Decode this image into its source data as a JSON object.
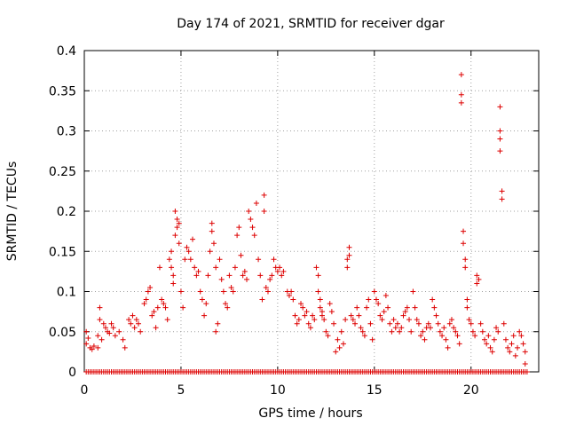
{
  "chart_data": {
    "type": "scatter",
    "title": "Day 174 of 2021, SRMTID for receiver dgar",
    "xlabel": "GPS time / hours",
    "ylabel": "SRMTID / TECUs",
    "xlim": [
      0,
      23.5
    ],
    "ylim": [
      0,
      0.4
    ],
    "grid": true,
    "marker": "+",
    "color": "#dd0000",
    "xticks": [
      0,
      5,
      10,
      15,
      20
    ],
    "xtick_labels": [
      "0",
      "5",
      "10",
      "15",
      "20"
    ],
    "yticks": [
      0,
      0.05,
      0.1,
      0.15,
      0.2,
      0.25,
      0.3,
      0.35,
      0.4
    ],
    "ytick_labels": [
      "0",
      "0.05",
      "0.1",
      "0.15",
      "0.2",
      "0.25",
      "0.3",
      "0.35",
      "0.4"
    ],
    "series": [
      {
        "name": "SRMTID",
        "points": [
          [
            0.1,
            0.035
          ],
          [
            0.1,
            0.05
          ],
          [
            0.2,
            0.042
          ],
          [
            0.3,
            0.03
          ],
          [
            0.4,
            0.028
          ],
          [
            0.5,
            0.032
          ],
          [
            0.7,
            0.045
          ],
          [
            0.7,
            0.03
          ],
          [
            0.8,
            0.065
          ],
          [
            0.8,
            0.08
          ],
          [
            0.9,
            0.04
          ],
          [
            1.0,
            0.06
          ],
          [
            1.1,
            0.055
          ],
          [
            1.2,
            0.05
          ],
          [
            1.3,
            0.048
          ],
          [
            1.4,
            0.06
          ],
          [
            1.5,
            0.055
          ],
          [
            1.6,
            0.045
          ],
          [
            1.8,
            0.05
          ],
          [
            2.0,
            0.04
          ],
          [
            2.1,
            0.03
          ],
          [
            2.3,
            0.065
          ],
          [
            2.4,
            0.06
          ],
          [
            2.5,
            0.07
          ],
          [
            2.6,
            0.055
          ],
          [
            2.7,
            0.065
          ],
          [
            2.8,
            0.06
          ],
          [
            2.9,
            0.05
          ],
          [
            3.1,
            0.085
          ],
          [
            3.2,
            0.09
          ],
          [
            3.3,
            0.1
          ],
          [
            3.4,
            0.105
          ],
          [
            3.5,
            0.07
          ],
          [
            3.6,
            0.075
          ],
          [
            3.7,
            0.055
          ],
          [
            3.8,
            0.08
          ],
          [
            3.9,
            0.13
          ],
          [
            4.0,
            0.09
          ],
          [
            4.1,
            0.085
          ],
          [
            4.2,
            0.08
          ],
          [
            4.3,
            0.065
          ],
          [
            4.4,
            0.14
          ],
          [
            4.5,
            0.13
          ],
          [
            4.5,
            0.15
          ],
          [
            4.6,
            0.11
          ],
          [
            4.6,
            0.12
          ],
          [
            4.7,
            0.17
          ],
          [
            4.7,
            0.2
          ],
          [
            4.8,
            0.18
          ],
          [
            4.8,
            0.19
          ],
          [
            4.9,
            0.16
          ],
          [
            4.9,
            0.185
          ],
          [
            5.0,
            0.1
          ],
          [
            5.1,
            0.08
          ],
          [
            5.2,
            0.14
          ],
          [
            5.3,
            0.155
          ],
          [
            5.4,
            0.15
          ],
          [
            5.5,
            0.14
          ],
          [
            5.6,
            0.165
          ],
          [
            5.7,
            0.13
          ],
          [
            5.8,
            0.12
          ],
          [
            5.9,
            0.125
          ],
          [
            6.0,
            0.1
          ],
          [
            6.1,
            0.09
          ],
          [
            6.2,
            0.07
          ],
          [
            6.3,
            0.085
          ],
          [
            6.4,
            0.12
          ],
          [
            6.5,
            0.15
          ],
          [
            6.6,
            0.175
          ],
          [
            6.6,
            0.185
          ],
          [
            6.7,
            0.16
          ],
          [
            6.8,
            0.13
          ],
          [
            6.8,
            0.05
          ],
          [
            6.9,
            0.06
          ],
          [
            7.0,
            0.14
          ],
          [
            7.1,
            0.115
          ],
          [
            7.2,
            0.1
          ],
          [
            7.3,
            0.085
          ],
          [
            7.4,
            0.08
          ],
          [
            7.5,
            0.12
          ],
          [
            7.6,
            0.105
          ],
          [
            7.7,
            0.1
          ],
          [
            7.8,
            0.13
          ],
          [
            7.9,
            0.17
          ],
          [
            8.0,
            0.18
          ],
          [
            8.1,
            0.145
          ],
          [
            8.2,
            0.12
          ],
          [
            8.3,
            0.125
          ],
          [
            8.4,
            0.115
          ],
          [
            8.5,
            0.2
          ],
          [
            8.6,
            0.19
          ],
          [
            8.7,
            0.18
          ],
          [
            8.8,
            0.17
          ],
          [
            8.9,
            0.21
          ],
          [
            9.0,
            0.14
          ],
          [
            9.1,
            0.12
          ],
          [
            9.2,
            0.09
          ],
          [
            9.3,
            0.22
          ],
          [
            9.3,
            0.2
          ],
          [
            9.4,
            0.105
          ],
          [
            9.5,
            0.1
          ],
          [
            9.6,
            0.115
          ],
          [
            9.7,
            0.12
          ],
          [
            9.8,
            0.14
          ],
          [
            9.9,
            0.13
          ],
          [
            10.0,
            0.125
          ],
          [
            10.1,
            0.13
          ],
          [
            10.2,
            0.12
          ],
          [
            10.3,
            0.125
          ],
          [
            10.5,
            0.1
          ],
          [
            10.6,
            0.095
          ],
          [
            10.7,
            0.1
          ],
          [
            10.8,
            0.09
          ],
          [
            10.9,
            0.07
          ],
          [
            11.0,
            0.06
          ],
          [
            11.1,
            0.065
          ],
          [
            11.2,
            0.085
          ],
          [
            11.3,
            0.08
          ],
          [
            11.4,
            0.07
          ],
          [
            11.5,
            0.075
          ],
          [
            11.6,
            0.06
          ],
          [
            11.7,
            0.055
          ],
          [
            11.8,
            0.07
          ],
          [
            11.9,
            0.065
          ],
          [
            12.0,
            0.13
          ],
          [
            12.1,
            0.12
          ],
          [
            12.1,
            0.1
          ],
          [
            12.2,
            0.09
          ],
          [
            12.2,
            0.08
          ],
          [
            12.3,
            0.075
          ],
          [
            12.3,
            0.07
          ],
          [
            12.4,
            0.065
          ],
          [
            12.5,
            0.05
          ],
          [
            12.6,
            0.045
          ],
          [
            12.7,
            0.085
          ],
          [
            12.8,
            0.075
          ],
          [
            12.9,
            0.06
          ],
          [
            13.0,
            0.025
          ],
          [
            13.1,
            0.04
          ],
          [
            13.2,
            0.03
          ],
          [
            13.3,
            0.05
          ],
          [
            13.4,
            0.035
          ],
          [
            13.5,
            0.065
          ],
          [
            13.6,
            0.13
          ],
          [
            13.6,
            0.14
          ],
          [
            13.7,
            0.155
          ],
          [
            13.7,
            0.145
          ],
          [
            13.8,
            0.07
          ],
          [
            13.9,
            0.065
          ],
          [
            14.0,
            0.06
          ],
          [
            14.1,
            0.08
          ],
          [
            14.2,
            0.07
          ],
          [
            14.3,
            0.055
          ],
          [
            14.4,
            0.05
          ],
          [
            14.5,
            0.045
          ],
          [
            14.6,
            0.08
          ],
          [
            14.7,
            0.09
          ],
          [
            14.8,
            0.06
          ],
          [
            14.9,
            0.04
          ],
          [
            15.0,
            0.1
          ],
          [
            15.1,
            0.09
          ],
          [
            15.2,
            0.085
          ],
          [
            15.3,
            0.07
          ],
          [
            15.4,
            0.065
          ],
          [
            15.5,
            0.075
          ],
          [
            15.6,
            0.095
          ],
          [
            15.7,
            0.08
          ],
          [
            15.8,
            0.06
          ],
          [
            15.9,
            0.05
          ],
          [
            16.0,
            0.065
          ],
          [
            16.1,
            0.055
          ],
          [
            16.2,
            0.06
          ],
          [
            16.3,
            0.05
          ],
          [
            16.4,
            0.055
          ],
          [
            16.5,
            0.07
          ],
          [
            16.6,
            0.075
          ],
          [
            16.7,
            0.08
          ],
          [
            16.8,
            0.065
          ],
          [
            16.9,
            0.05
          ],
          [
            17.0,
            0.1
          ],
          [
            17.1,
            0.08
          ],
          [
            17.2,
            0.065
          ],
          [
            17.3,
            0.06
          ],
          [
            17.4,
            0.045
          ],
          [
            17.5,
            0.05
          ],
          [
            17.6,
            0.04
          ],
          [
            17.7,
            0.055
          ],
          [
            17.8,
            0.06
          ],
          [
            17.9,
            0.055
          ],
          [
            18.0,
            0.09
          ],
          [
            18.1,
            0.08
          ],
          [
            18.2,
            0.07
          ],
          [
            18.3,
            0.06
          ],
          [
            18.4,
            0.05
          ],
          [
            18.5,
            0.045
          ],
          [
            18.6,
            0.055
          ],
          [
            18.7,
            0.04
          ],
          [
            18.8,
            0.03
          ],
          [
            18.9,
            0.06
          ],
          [
            19.0,
            0.065
          ],
          [
            19.1,
            0.055
          ],
          [
            19.2,
            0.05
          ],
          [
            19.3,
            0.045
          ],
          [
            19.4,
            0.035
          ],
          [
            19.5,
            0.37
          ],
          [
            19.5,
            0.345
          ],
          [
            19.5,
            0.335
          ],
          [
            19.6,
            0.175
          ],
          [
            19.6,
            0.16
          ],
          [
            19.7,
            0.14
          ],
          [
            19.7,
            0.13
          ],
          [
            19.8,
            0.09
          ],
          [
            19.8,
            0.08
          ],
          [
            19.9,
            0.065
          ],
          [
            20.0,
            0.06
          ],
          [
            20.1,
            0.05
          ],
          [
            20.2,
            0.045
          ],
          [
            20.3,
            0.12
          ],
          [
            20.3,
            0.11
          ],
          [
            20.4,
            0.115
          ],
          [
            20.5,
            0.06
          ],
          [
            20.6,
            0.05
          ],
          [
            20.7,
            0.04
          ],
          [
            20.8,
            0.035
          ],
          [
            20.9,
            0.045
          ],
          [
            21.0,
            0.03
          ],
          [
            21.1,
            0.025
          ],
          [
            21.2,
            0.04
          ],
          [
            21.3,
            0.055
          ],
          [
            21.4,
            0.05
          ],
          [
            21.5,
            0.33
          ],
          [
            21.5,
            0.3
          ],
          [
            21.5,
            0.29
          ],
          [
            21.5,
            0.275
          ],
          [
            21.6,
            0.225
          ],
          [
            21.6,
            0.215
          ],
          [
            21.7,
            0.06
          ],
          [
            21.8,
            0.04
          ],
          [
            21.9,
            0.03
          ],
          [
            22.0,
            0.025
          ],
          [
            22.1,
            0.035
          ],
          [
            22.2,
            0.045
          ],
          [
            22.3,
            0.02
          ],
          [
            22.4,
            0.03
          ],
          [
            22.5,
            0.05
          ],
          [
            22.6,
            0.045
          ],
          [
            22.7,
            0.035
          ],
          [
            22.8,
            0.025
          ],
          [
            22.8,
            0.01
          ]
        ],
        "zero_run_x": [
          0.1,
          22.9
        ],
        "zero_run_step": 0.1
      }
    ]
  }
}
